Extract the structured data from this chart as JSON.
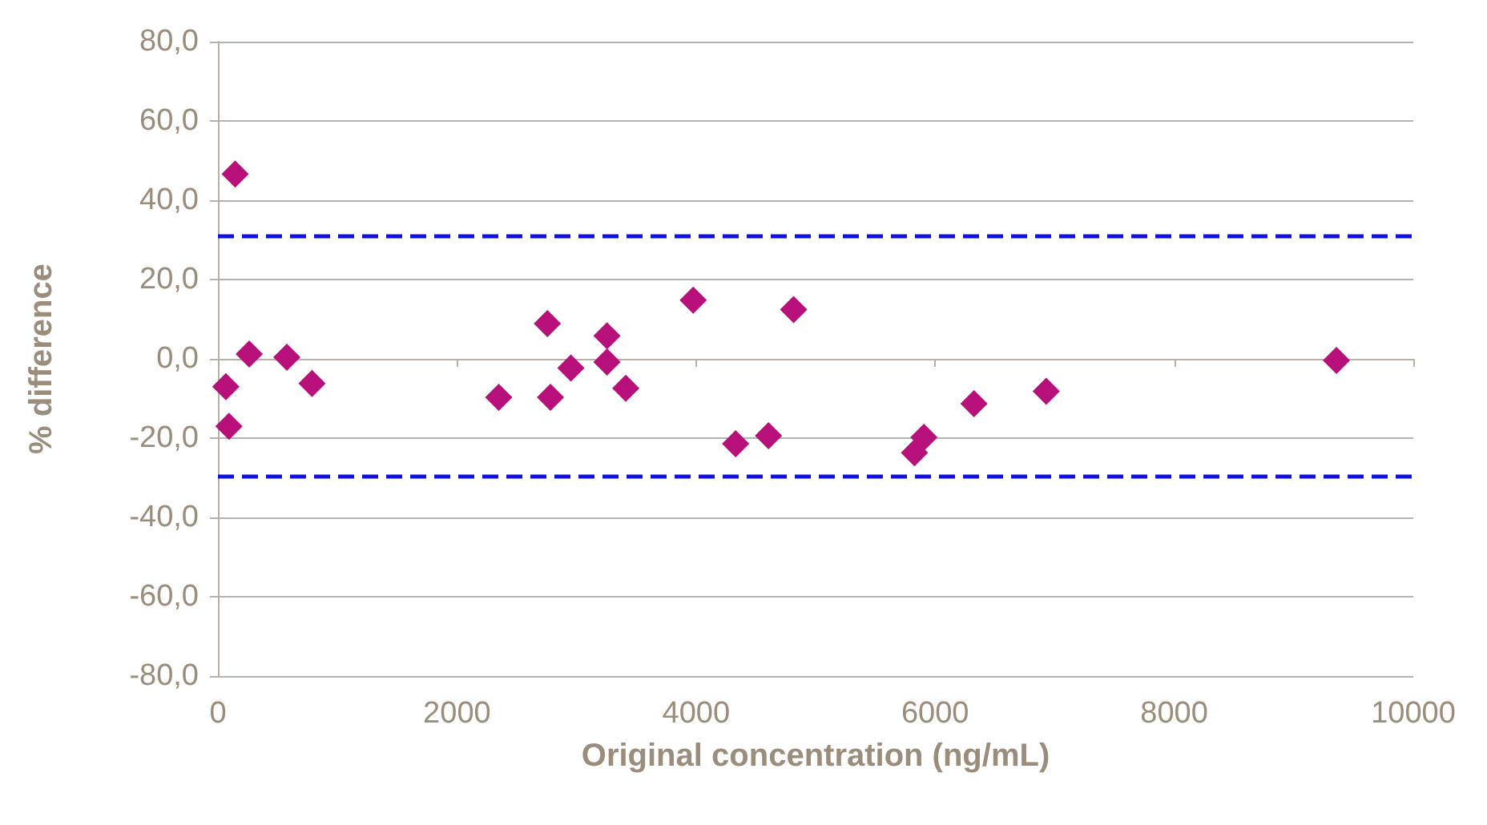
{
  "chart_data": {
    "type": "scatter",
    "xlabel": "Original concentration (ng/mL)",
    "ylabel": "% difference",
    "x": [
      66,
      144,
      92,
      262,
      577,
      787,
      2349,
      2756,
      2782,
      2953,
      3255,
      3255,
      3412,
      3976,
      4331,
      4606,
      4816,
      5827,
      5906,
      6325,
      6929,
      9357
    ],
    "series": [
      {
        "color": "#b8107a",
        "values": [
          -7.0,
          46.6,
          -17.0,
          1.2,
          0.4,
          -6.2,
          -9.7,
          8.9,
          -9.7,
          -2.3,
          5.8,
          -0.8,
          -7.4,
          14.8,
          -21.4,
          -19.4,
          12.4,
          -23.7,
          -19.8,
          -11.3,
          -8.2,
          -0.4
        ]
      }
    ],
    "xlim": [
      0,
      10000
    ],
    "xticks": [
      0,
      2000,
      4000,
      6000,
      8000,
      10000
    ],
    "ylim": [
      -80,
      80
    ],
    "yticks": [
      {
        "value": -80,
        "label": "-80,0"
      },
      {
        "value": -60,
        "label": "-60,0"
      },
      {
        "value": -40,
        "label": "-40,0"
      },
      {
        "value": -20,
        "label": "-20,0"
      },
      {
        "value": 0,
        "label": "0,0"
      },
      {
        "value": 20,
        "label": "20,0"
      },
      {
        "value": 40,
        "label": "40,0"
      },
      {
        "value": 60,
        "label": "60,0"
      },
      {
        "value": 80,
        "label": "80,0"
      }
    ],
    "ref_lines": [
      {
        "axis": "y",
        "value": 31,
        "label": null,
        "color": "#1010e0",
        "line_style": "dashed"
      },
      {
        "axis": "y",
        "value": -29.5,
        "label": null,
        "color": "#1010e0",
        "line_style": "dashed"
      }
    ],
    "grid": "y",
    "marker": "diamond"
  }
}
